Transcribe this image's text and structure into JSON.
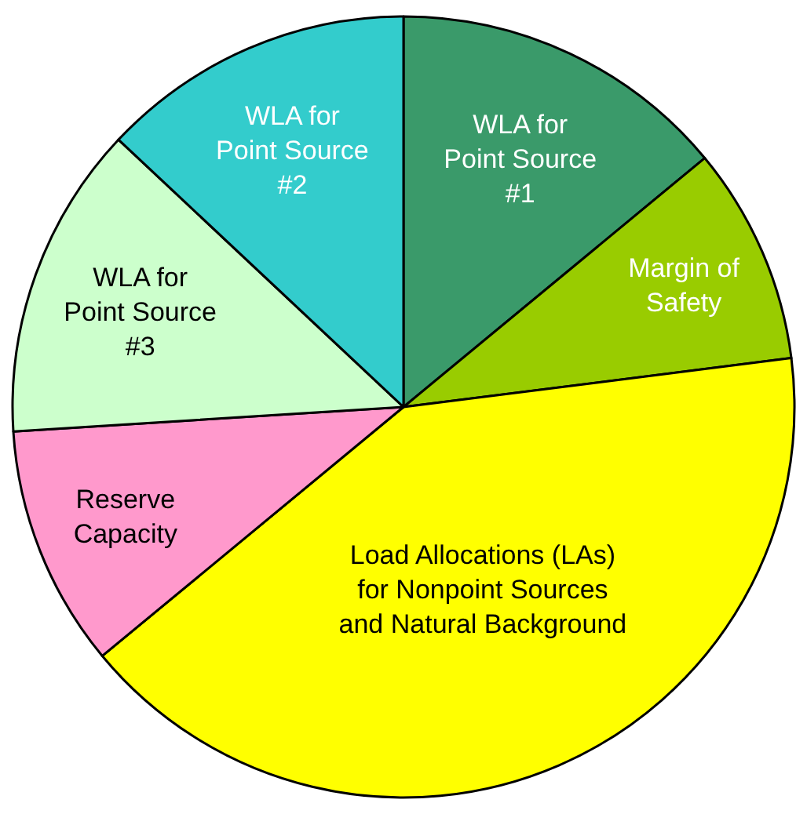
{
  "chart_data": {
    "type": "pie",
    "categories": [
      "WLA for\nPoint Source\n#1",
      "Margin of\nSafety",
      "Load Allocations (LAs)\nfor Nonpoint Sources\nand Natural Background",
      "Reserve\nCapacity",
      "WLA for\nPoint Source\n#3",
      "WLA for\nPoint Source\n#2"
    ],
    "values": [
      14,
      9,
      41,
      10,
      13,
      13
    ],
    "colors": [
      "#3a9a6a",
      "#99cc00",
      "#ffff00",
      "#ff99cc",
      "#ccffcc",
      "#33cccc"
    ],
    "legend": false
  }
}
